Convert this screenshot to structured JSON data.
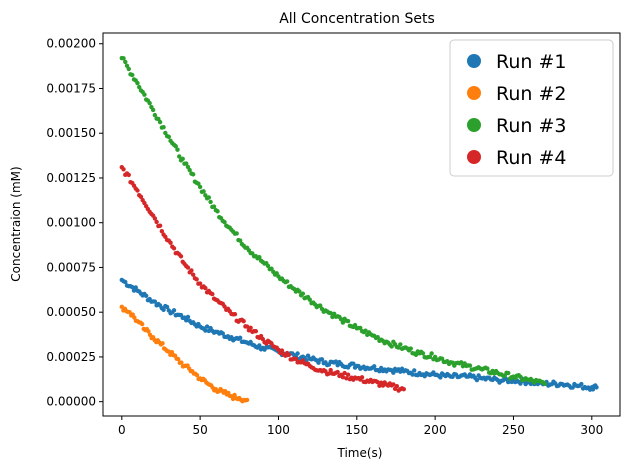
{
  "chart_data": {
    "type": "scatter",
    "title": "All Concentration Sets",
    "xlabel": "Time(s)",
    "ylabel": "Concentraion (mM)",
    "xlim": [
      -12,
      318
    ],
    "ylim": [
      -8e-05,
      0.00206
    ],
    "xticks": [
      0,
      50,
      100,
      150,
      200,
      250,
      300
    ],
    "yticks": [
      0.0,
      0.00025,
      0.0005,
      0.00075,
      0.001,
      0.00125,
      0.0015,
      0.00175,
      0.002
    ],
    "ytick_labels": [
      "0.00000",
      "0.00025",
      "0.00050",
      "0.00075",
      "0.00100",
      "0.00125",
      "0.00150",
      "0.00175",
      "0.00200"
    ],
    "grid": false,
    "legend_position": "top-right",
    "series": [
      {
        "name": "Run #1",
        "color": "#1f77b4",
        "x": [
          0,
          10,
          20,
          30,
          40,
          50,
          60,
          70,
          80,
          90,
          100,
          110,
          120,
          130,
          140,
          150,
          160,
          170,
          180,
          190,
          200,
          210,
          220,
          230,
          240,
          250,
          260,
          270,
          280,
          290,
          300,
          303
        ],
        "y": [
          0.00068,
          0.00062,
          0.00056,
          0.00051,
          0.00047,
          0.00042,
          0.00039,
          0.00036,
          0.00033,
          0.0003,
          0.00028,
          0.00026,
          0.00024,
          0.00022,
          0.00021,
          0.0002,
          0.00019,
          0.00018,
          0.00017,
          0.00016,
          0.00015,
          0.00014,
          0.00014,
          0.00013,
          0.00012,
          0.00012,
          0.00011,
          0.0001,
          0.0001,
          9e-05,
          8e-05,
          8e-05
        ]
      },
      {
        "name": "Run #2",
        "color": "#ff7f0e",
        "x": [
          0,
          5,
          10,
          15,
          20,
          25,
          30,
          35,
          40,
          45,
          50,
          55,
          60,
          65,
          70,
          75,
          80
        ],
        "y": [
          0.00053,
          0.0005,
          0.00045,
          0.0004,
          0.00036,
          0.00032,
          0.00028,
          0.00024,
          0.0002,
          0.00017,
          0.00013,
          0.0001,
          7e-05,
          5e-05,
          3e-05,
          2e-05,
          1e-05
        ]
      },
      {
        "name": "Run #3",
        "color": "#2ca02c",
        "x": [
          0,
          10,
          20,
          30,
          40,
          50,
          60,
          70,
          80,
          90,
          100,
          110,
          120,
          130,
          140,
          150,
          160,
          170,
          180,
          190,
          200,
          210,
          220,
          230,
          240,
          250,
          260,
          270
        ],
        "y": [
          0.00192,
          0.00178,
          0.00163,
          0.00148,
          0.00133,
          0.0012,
          0.00107,
          0.00096,
          0.00086,
          0.00078,
          0.0007,
          0.00063,
          0.00057,
          0.00051,
          0.00046,
          0.00041,
          0.00037,
          0.00033,
          0.0003,
          0.00027,
          0.00025,
          0.00022,
          0.0002,
          0.00018,
          0.00016,
          0.00014,
          0.00012,
          0.0001
        ]
      },
      {
        "name": "Run #4",
        "color": "#d62728",
        "x": [
          0,
          10,
          20,
          30,
          40,
          50,
          60,
          70,
          80,
          90,
          100,
          110,
          120,
          130,
          140,
          150,
          160,
          170,
          180
        ],
        "y": [
          0.00131,
          0.00118,
          0.00104,
          0.0009,
          0.00077,
          0.00066,
          0.00057,
          0.00049,
          0.00042,
          0.00035,
          0.00029,
          0.00024,
          0.0002,
          0.00017,
          0.00015,
          0.00013,
          0.00011,
          9e-05,
          7e-05
        ]
      }
    ]
  }
}
